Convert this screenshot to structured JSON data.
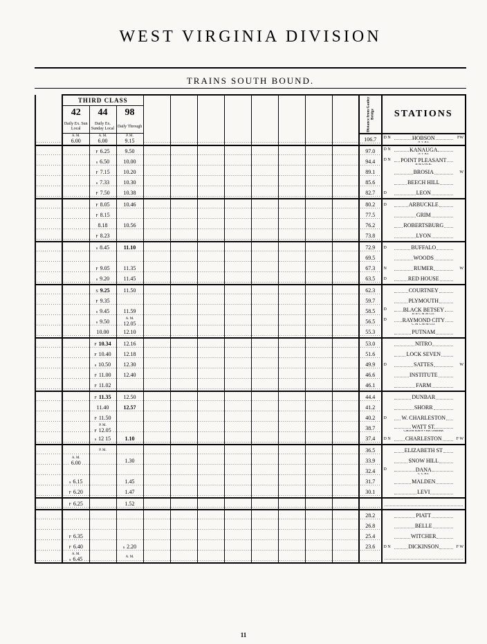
{
  "title": "WEST VIRGINIA DIVISION",
  "subtitle": "TRAINS SOUTH BOUND.",
  "class_header": "THIRD CLASS",
  "distance_header": "Distance from Gauley Bridge",
  "stations_header": "STATIONS",
  "page_number": "11",
  "colors": {
    "paper": "#faf8f5",
    "ink": "#000000",
    "dots": "#888888"
  },
  "trains": [
    {
      "num": "42",
      "sub": "Daily Ex. Sun Local",
      "start_ampm": "A. M.",
      "start_time": "6.00"
    },
    {
      "num": "44",
      "sub": "Daily Ex. Sunday Local",
      "start_ampm": "A. M.",
      "start_time": "6.00"
    },
    {
      "num": "98",
      "sub": "Daily Through",
      "start_ampm": "P. M.",
      "start_time": "9.15"
    }
  ],
  "rows": [
    {
      "t42": "",
      "t44": "",
      "t44am": true,
      "t98": "",
      "t98am": true,
      "dist": "106.7",
      "pre": "D N",
      "name": "HOBSON",
      "post": "FW",
      "sub": "N V RY.",
      "bot": true,
      "start": true
    },
    {
      "t42": "",
      "t44": "6.25",
      "p44": "F",
      "t98": "9.50",
      "dist": "97.0",
      "pre": "D N",
      "name": "KANAUGA",
      "post": "",
      "sub": "N V RY"
    },
    {
      "t42": "",
      "t44": "6.50",
      "p44": "s",
      "t98": "10.00",
      "dist": "94.4",
      "pre": "D N",
      "name": "POINT PLEASANT",
      "post": "",
      "sub": "B & O R R."
    },
    {
      "t42": "",
      "t44": "7.15",
      "p44": "F",
      "t98": "10.20",
      "dist": "89.1",
      "pre": "",
      "name": "BROSIA",
      "post": "W"
    },
    {
      "t42": "",
      "t44": "7.33",
      "p44": "s",
      "t98": "10.30",
      "dist": "85.6",
      "pre": "",
      "name": "BEECH HILL",
      "post": ""
    },
    {
      "t42": "",
      "t44": "7.50",
      "p44": "F",
      "t98": "10.38",
      "dist": "82.7",
      "pre": "D",
      "name": "LEON",
      "post": "",
      "bot": true
    },
    {
      "t42": "",
      "t44": "8.05",
      "p44": "F",
      "t98": "10.46",
      "dist": "80.2",
      "pre": "D",
      "name": "ARBUCKLE",
      "post": ""
    },
    {
      "t42": "",
      "t44": "8.15",
      "p44": "F",
      "t98": "",
      "dist": "77.5",
      "pre": "",
      "name": "GRIM",
      "post": ""
    },
    {
      "t42": "",
      "t44": "8.18",
      "t98": "10.56",
      "dist": "76.2",
      "pre": "",
      "name": "ROBERTSBURG",
      "post": ""
    },
    {
      "t42": "",
      "t44": "8.23",
      "p44": "F",
      "t98": "",
      "dist": "73.8",
      "pre": "",
      "name": "LYON",
      "post": "",
      "bot": true
    },
    {
      "t42": "",
      "t44": "8.45",
      "p44": "s",
      "t98": "11.10",
      "b98": true,
      "dist": "72.9",
      "pre": "D",
      "name": "BUFFALO",
      "post": ""
    },
    {
      "t42": "",
      "t44": "",
      "t98": "",
      "dist": "69.5",
      "pre": "",
      "name": "WOODS",
      "post": ""
    },
    {
      "t42": "",
      "t44": "9.05",
      "p44": "F",
      "t98": "11.35",
      "dist": "67.3",
      "pre": "N",
      "name": "RUMER",
      "post": "W"
    },
    {
      "t42": "",
      "t44": "9.20",
      "p44": "s",
      "t98": "11.45",
      "dist": "63.5",
      "pre": "D",
      "name": "RED HOUSE",
      "post": "",
      "bot": true
    },
    {
      "t42": "",
      "t44": "9.25",
      "p44": "S",
      "b44": true,
      "t98": "11.50",
      "dist": "62.3",
      "pre": "",
      "name": "COURTNEY",
      "post": ""
    },
    {
      "t42": "",
      "t44": "9.35",
      "p44": "F",
      "t98": "",
      "dist": "59.7",
      "pre": "",
      "name": "PLYMOUTH",
      "post": ""
    },
    {
      "t42": "",
      "t44": "9.45",
      "p44": "s",
      "t98": "11.59",
      "dist": "58.5",
      "pre": "D",
      "name": "BLACK BETSEY",
      "post": "",
      "sub": "B B C & M CO."
    },
    {
      "t42": "",
      "t44": "9.50",
      "p44": "s",
      "t98": "12.05",
      "t98sub": "A. M.",
      "dist": "56.5",
      "pre": "D",
      "name": "RAYMOND CITY",
      "post": "",
      "sub": "C M C & M CO."
    },
    {
      "t42": "",
      "t44": "10.00",
      "t98": "12.10",
      "dist": "55.3",
      "pre": "",
      "name": "PUTNAM",
      "post": "",
      "bot": true
    },
    {
      "t42": "",
      "t44": "10.34",
      "p44": "F",
      "b44": true,
      "t98": "12.16",
      "dist": "53.0",
      "pre": "",
      "name": "NITRO",
      "post": ""
    },
    {
      "t42": "",
      "t44": "10.40",
      "p44": "F",
      "t98": "12.18",
      "dist": "51.6",
      "pre": "",
      "name": "LOCK SEVEN",
      "post": ""
    },
    {
      "t42": "",
      "t44": "10.50",
      "p44": "s",
      "t98": "12.30",
      "dist": "49.9",
      "pre": "D",
      "name": "SATTES",
      "post": "W"
    },
    {
      "t42": "",
      "t44": "11.00",
      "p44": "F",
      "t98": "12.40",
      "dist": "46.6",
      "pre": "",
      "name": "INSTITUTE",
      "post": ""
    },
    {
      "t42": "",
      "t44": "11.02",
      "p44": "F",
      "t98": "",
      "dist": "46.1",
      "pre": "",
      "name": "FARM",
      "post": "",
      "bot": true
    },
    {
      "t42": "",
      "t44": "11.35",
      "p44": "F",
      "b44": true,
      "t98": "12.50",
      "dist": "44.4",
      "pre": "",
      "name": "DUNBAR",
      "post": ""
    },
    {
      "t42": "",
      "t44": "11.40",
      "t98": "12.57",
      "b98": true,
      "dist": "41.2",
      "pre": "",
      "name": "SHORR",
      "post": ""
    },
    {
      "t42": "",
      "t44": "11.50",
      "p44": "F",
      "t98": "",
      "dist": "40.2",
      "pre": "D",
      "name": "W. CHARLESTON",
      "post": ""
    },
    {
      "t42": "",
      "t44": "12.05",
      "p44": "F",
      "t44sub": "P. M.",
      "t98": "",
      "dist": "38.7",
      "pre": "",
      "name": "WATT ST.",
      "post": "",
      "sub": "C&OM    K&WVRR    O&BRR"
    },
    {
      "t42": "",
      "t44": "12 15",
      "p44": "s",
      "t98": "1.10",
      "b98": true,
      "dist": "37.4",
      "pre": "D N",
      "name": "CHARLESTON",
      "post": "F W",
      "bot": true
    },
    {
      "t42": "",
      "t44": "",
      "t44sub": "P. M.",
      "t98": "",
      "dist": "36.5",
      "pre": "",
      "name": "ELIZABETH ST",
      "post": ""
    },
    {
      "t42": "6.00",
      "t42sub": "A. M.",
      "t44": "",
      "t98": "1.30",
      "dist": "33.9",
      "pre": "",
      "name": "SNOW HILL",
      "post": ""
    },
    {
      "t42": "",
      "t44": "",
      "t98": "",
      "dist": "32.4",
      "pre": "D",
      "name": "DANA",
      "post": "",
      "sub": "C C RY."
    },
    {
      "t42": "6.15",
      "p42": "s",
      "t44": "",
      "t98": "1.45",
      "dist": "31.7",
      "pre": "",
      "name": "MALDEN",
      "post": ""
    },
    {
      "t42": "6.20",
      "p42": "F",
      "t44": "",
      "t98": "1.47",
      "dist": "30.1",
      "pre": "",
      "name": "LEVI",
      "post": "",
      "bot": true
    },
    {
      "t42": "6.25",
      "p42": "F",
      "t44": "",
      "t98": "1.52",
      "dist": "",
      "pre": "",
      "name": "",
      "post": "",
      "bot": true,
      "empty_station": true
    },
    {
      "t42": "",
      "t44": "",
      "t98": "",
      "dist": "28.2",
      "pre": "",
      "name": "PIATT",
      "post": ""
    },
    {
      "t42": "",
      "t44": "",
      "t98": "",
      "dist": "26.8",
      "pre": "",
      "name": "BELLE",
      "post": ""
    },
    {
      "t42": "6.35",
      "p42": "F",
      "t44": "",
      "t98": "",
      "dist": "25.4",
      "pre": "",
      "name": "WITCHER",
      "post": ""
    },
    {
      "t42": "6.40",
      "p42": "F",
      "t44": "",
      "t98": "2.20",
      "p98": "s",
      "dist": "23.6",
      "pre": "D N",
      "name": "DICKINSON",
      "post": "F W"
    },
    {
      "t42": "6.45",
      "p42": "s",
      "t42sub": "A. M.",
      "t44": "",
      "t98": "",
      "t98sub": "A. M.",
      "dist": "",
      "pre": "",
      "name": "",
      "post": "",
      "empty_station": true,
      "bot": true
    }
  ]
}
